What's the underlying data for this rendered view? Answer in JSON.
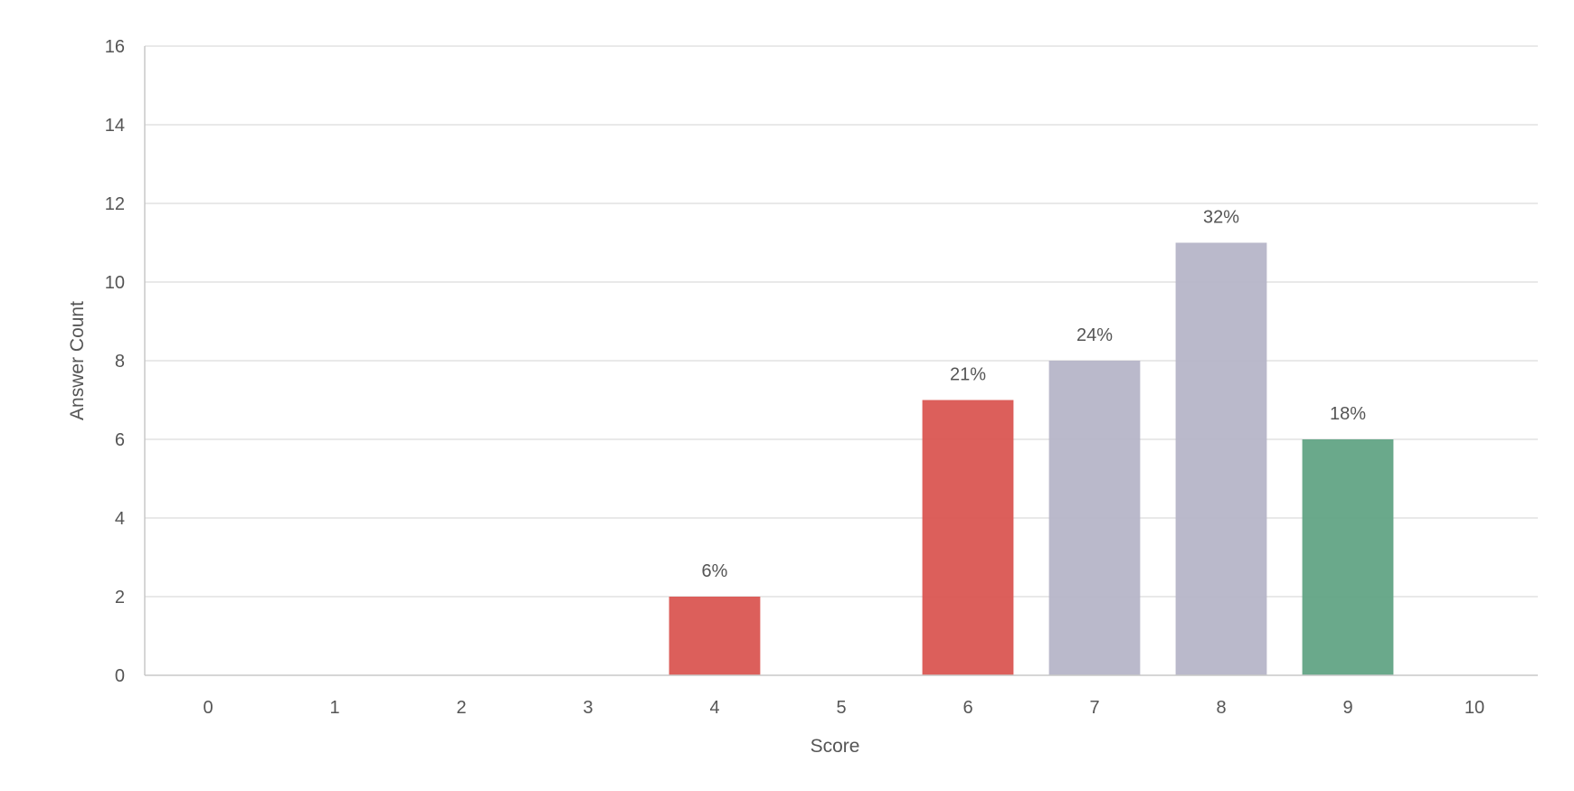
{
  "chart_data": {
    "type": "bar",
    "title": "",
    "xlabel": "Score",
    "ylabel": "Answer Count",
    "categories": [
      "0",
      "1",
      "2",
      "3",
      "4",
      "5",
      "6",
      "7",
      "8",
      "9",
      "10"
    ],
    "values": [
      0,
      0,
      0,
      0,
      2,
      0,
      7,
      8,
      11,
      6,
      0
    ],
    "data_labels": [
      "",
      "",
      "",
      "",
      "6%",
      "",
      "21%",
      "24%",
      "32%",
      "18%",
      ""
    ],
    "bar_colors": [
      "#d9534f",
      "#d9534f",
      "#d9534f",
      "#d9534f",
      "#d9534f",
      "#d9534f",
      "#d9534f",
      "#b5b4c7",
      "#b5b4c7",
      "#5fa382",
      "#5fa382"
    ],
    "ylim": [
      0,
      16
    ],
    "yticks": [
      0,
      2,
      4,
      6,
      8,
      10,
      12,
      14,
      16
    ],
    "grid": true,
    "legend": "none"
  }
}
